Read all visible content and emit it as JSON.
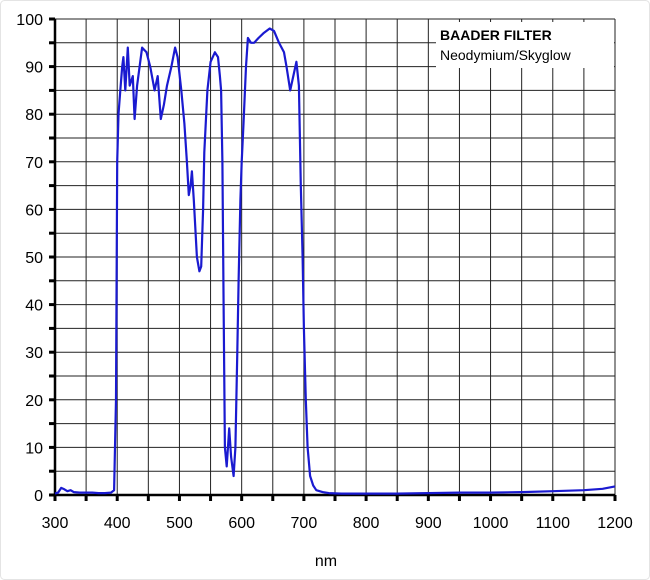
{
  "chart_data": {
    "type": "line",
    "title": "BAADER FILTER",
    "subtitle": "Neodymium/Skyglow",
    "xlabel": "nm",
    "ylabel": "",
    "xlim": [
      300,
      1200
    ],
    "ylim": [
      0,
      100
    ],
    "xticks": [
      300,
      400,
      500,
      600,
      700,
      800,
      900,
      1000,
      1100,
      1200
    ],
    "yticks": [
      0,
      10,
      20,
      30,
      40,
      50,
      60,
      70,
      80,
      90,
      100
    ],
    "grid": true,
    "legend": "top-right",
    "series_color": "#1a1ad0",
    "series": [
      {
        "x": [
          300,
          305,
          310,
          315,
          320,
          325,
          330,
          340,
          350,
          360,
          370,
          380,
          390,
          395,
          398,
          400,
          402,
          405,
          408,
          410,
          413,
          417,
          420,
          425,
          428,
          432,
          436,
          440,
          447,
          453,
          460,
          465,
          470,
          475,
          480,
          487,
          493,
          497,
          503,
          508,
          512,
          515,
          518,
          520,
          523,
          528,
          532,
          535,
          538,
          540,
          545,
          550,
          557,
          562,
          565,
          567,
          569,
          571,
          573,
          576,
          580,
          583,
          587,
          590,
          593,
          595,
          598,
          600,
          603,
          607,
          610,
          615,
          620,
          627,
          635,
          645,
          652,
          660,
          668,
          672,
          678,
          683,
          688,
          692,
          695,
          698,
          700,
          703,
          706,
          710,
          715,
          720,
          730,
          740,
          760,
          800,
          850,
          900,
          950,
          1000,
          1050,
          1100,
          1150,
          1180,
          1200
        ],
        "y": [
          0.3,
          0.5,
          1.5,
          1.2,
          0.8,
          1.0,
          0.6,
          0.5,
          0.5,
          0.5,
          0.4,
          0.4,
          0.5,
          1.0,
          20,
          70,
          80,
          85,
          90,
          92,
          85,
          94,
          86,
          88,
          79,
          86,
          90,
          94,
          93,
          90,
          85,
          88,
          79,
          82,
          86,
          90,
          94,
          92,
          85,
          78,
          70,
          63,
          65,
          68,
          62,
          50,
          47,
          48,
          60,
          72,
          85,
          91,
          93,
          92,
          88,
          85,
          70,
          40,
          10,
          6,
          14,
          8,
          4,
          10,
          30,
          45,
          62,
          70,
          78,
          90,
          96,
          95,
          95,
          96,
          97,
          98,
          97.5,
          95,
          93,
          90,
          85,
          88,
          91,
          86,
          65,
          50,
          35,
          20,
          10,
          4,
          2,
          1,
          0.6,
          0.4,
          0.3,
          0.3,
          0.3,
          0.4,
          0.5,
          0.5,
          0.6,
          0.8,
          1.0,
          1.3,
          1.8
        ]
      }
    ]
  }
}
